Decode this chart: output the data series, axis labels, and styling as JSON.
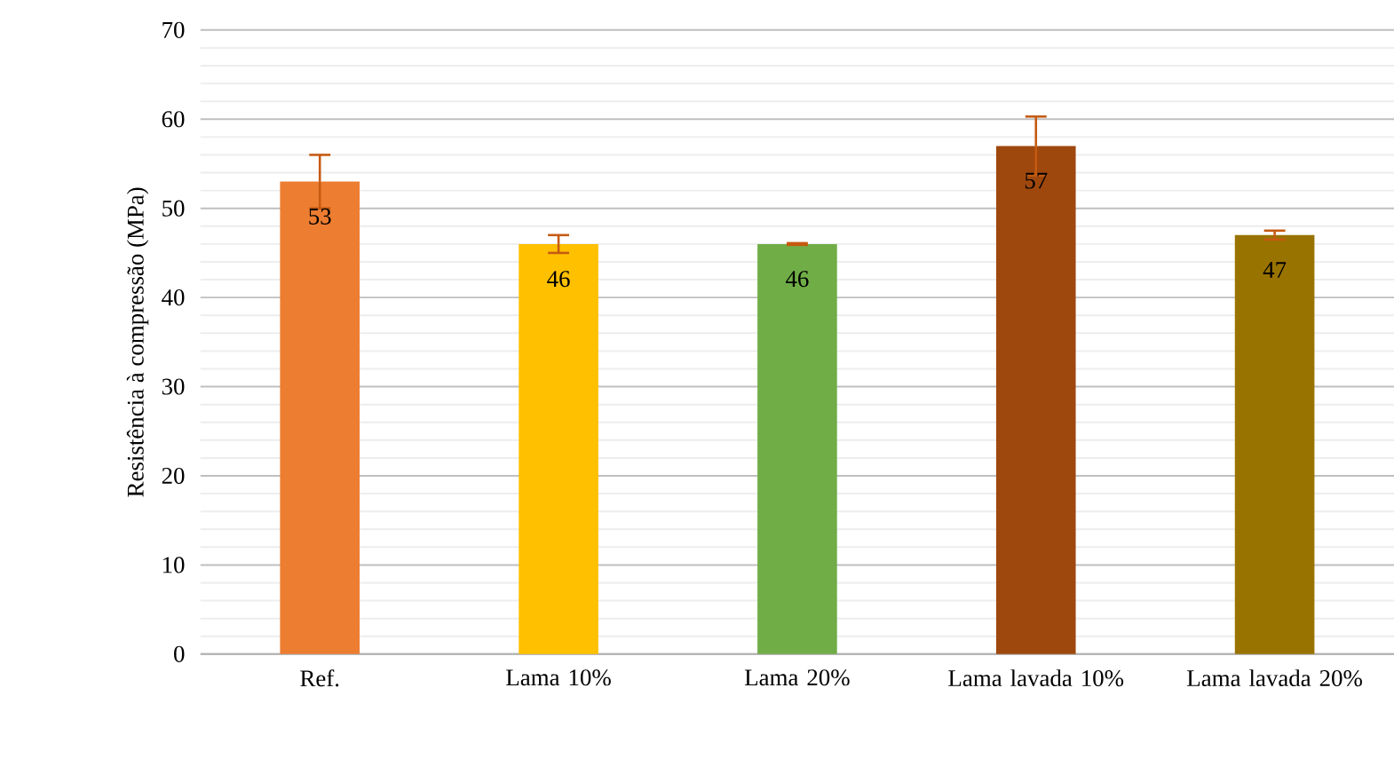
{
  "chart_data": {
    "type": "bar",
    "ylabel": "Resistência à compressão (MPa)",
    "categories": [
      "Ref.",
      "Lama 10%",
      "Lama 20%",
      "Lama lavada 10%",
      "Lama lavada 20%"
    ],
    "values": [
      53,
      46,
      46,
      57,
      47
    ],
    "errors": [
      3,
      1,
      0.1,
      3.3,
      0.5
    ],
    "colors": [
      "#ed7d31",
      "#ffc000",
      "#70ad47",
      "#9e480e",
      "#997300"
    ],
    "ylim": [
      0,
      70
    ],
    "yticks": [
      0,
      10,
      20,
      30,
      40,
      50,
      60,
      70
    ],
    "grid": "y",
    "data_labels": true
  }
}
